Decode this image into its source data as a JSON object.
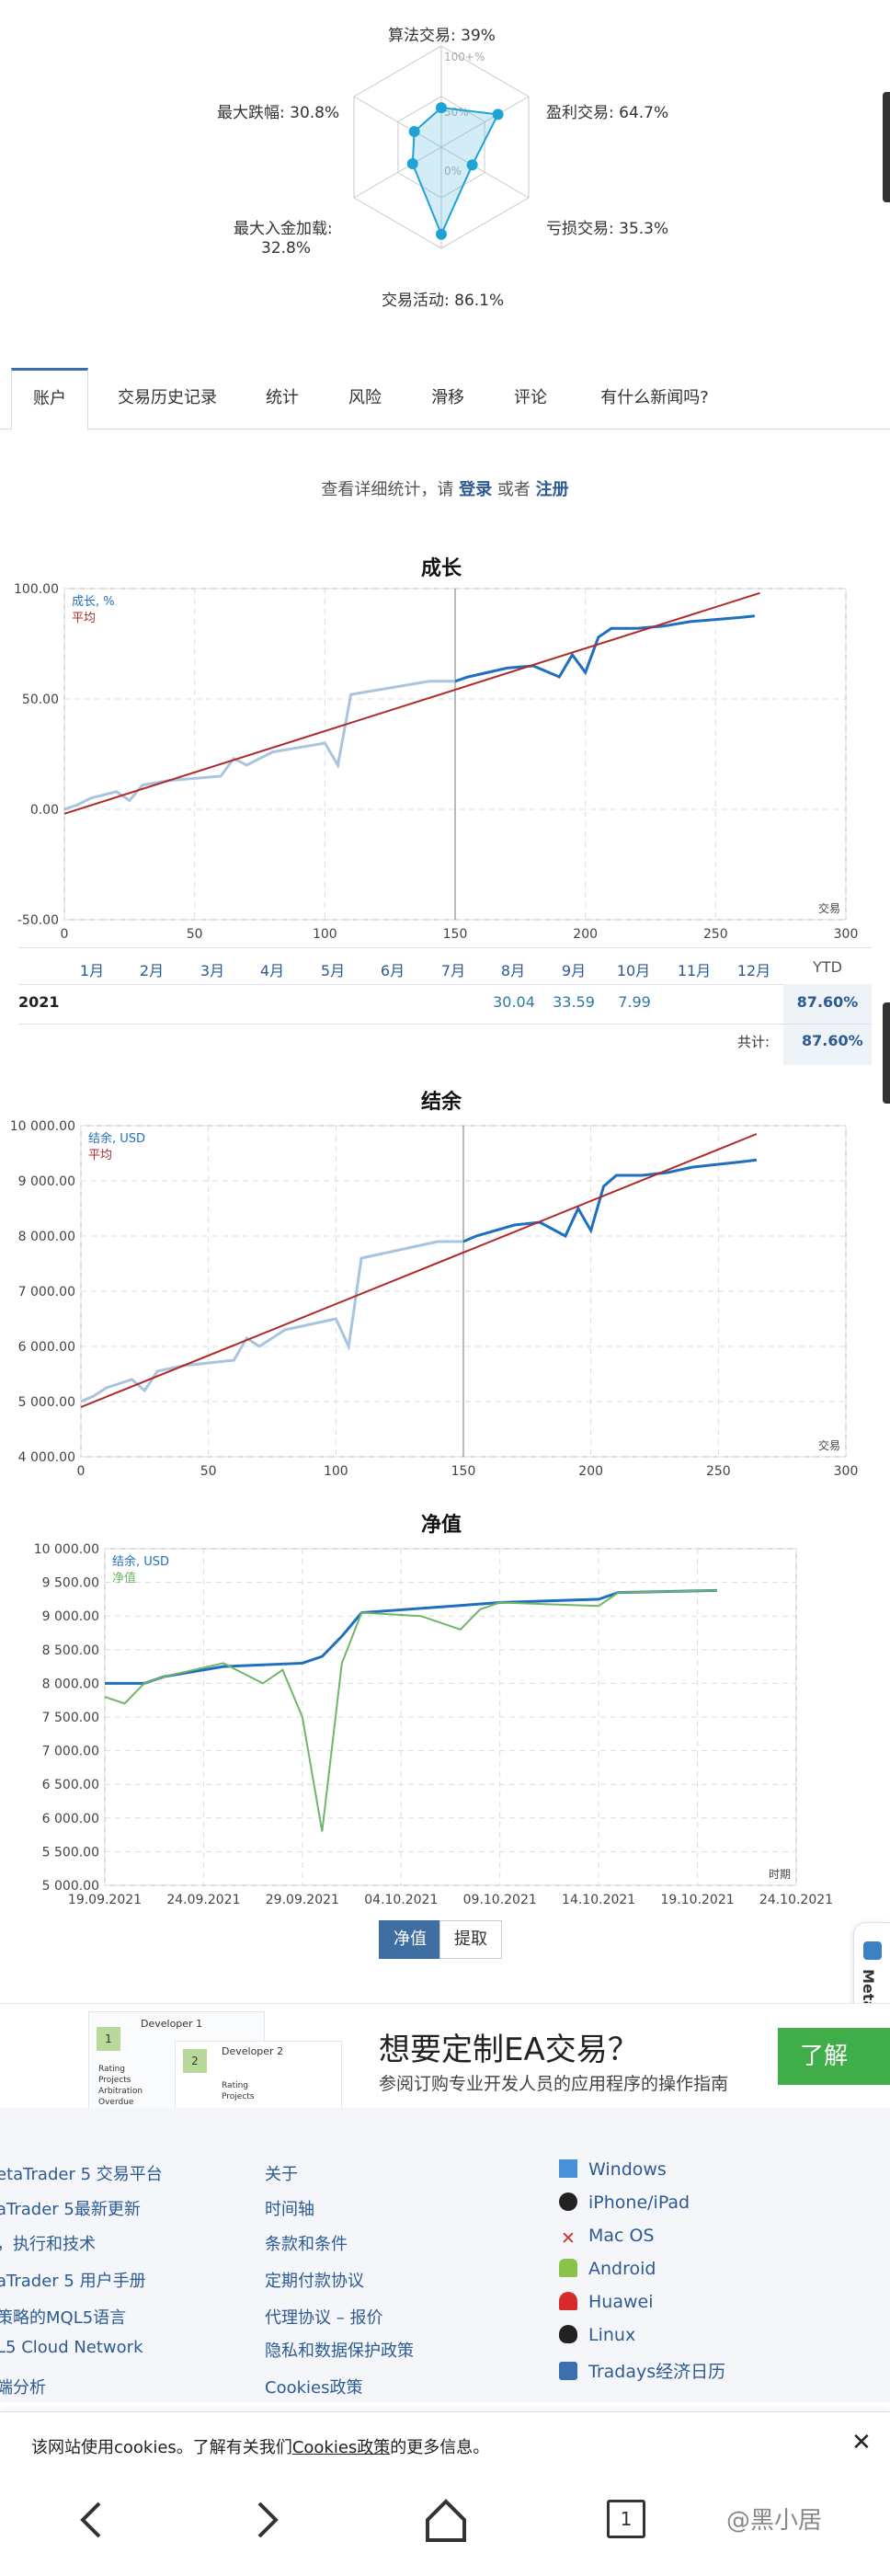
{
  "radar": {
    "labels": {
      "algo": "算法交易: 39%",
      "profit": "盈利交易: 64.7%",
      "loss": "亏损交易: 35.3%",
      "activity": "交易活动: 86.1%",
      "deposit_a": "最大入金加载:",
      "deposit_b": "32.8%",
      "drawdown": "最大跌幅: 30.8%"
    },
    "rings": [
      "100+%",
      "50%",
      "0%"
    ],
    "values": {
      "algo": 0.39,
      "profit": 0.647,
      "loss": 0.353,
      "activity": 0.861,
      "deposit": 0.328,
      "drawdown": 0.308
    }
  },
  "tabs": [
    "账户",
    "交易历史记录",
    "统计",
    "风险",
    "滑移",
    "评论",
    "有什么新闻吗?"
  ],
  "login_prompt": {
    "before": "查看详细统计，请",
    "login": "登录",
    "or": "或者",
    "register": "注册"
  },
  "growth": {
    "title": "成长",
    "legend": [
      "成长, %",
      "平均"
    ],
    "xlabel": "交易",
    "yticks": [
      "100.00",
      "50.00",
      "0.00",
      "-50.00"
    ],
    "xticks": [
      "0",
      "50",
      "100",
      "150",
      "200",
      "250",
      "300"
    ],
    "months": [
      "1月",
      "2月",
      "3月",
      "4月",
      "5月",
      "6月",
      "7月",
      "8月",
      "9月",
      "10月",
      "11月",
      "12月"
    ],
    "ytd_label": "YTD",
    "year": "2021",
    "month_values": {
      "aug": "30.04",
      "sep": "33.59",
      "oct": "7.99"
    },
    "ytd": "87.60%",
    "total_label": "共计:",
    "total": "87.60%"
  },
  "balance": {
    "title": "结余",
    "legend": [
      "结余, USD",
      "平均"
    ],
    "xlabel": "交易",
    "yticks": [
      "10 000.00",
      "9 000.00",
      "8 000.00",
      "7 000.00",
      "6 000.00",
      "5 000.00",
      "4 000.00"
    ],
    "xticks": [
      "0",
      "50",
      "100",
      "150",
      "200",
      "250",
      "300"
    ]
  },
  "equity": {
    "title": "净值",
    "legend": [
      "结余, USD",
      "净值"
    ],
    "xlabel": "时期",
    "yticks": [
      "10 000.00",
      "9 500.00",
      "9 000.00",
      "8 500.00",
      "8 000.00",
      "7 500.00",
      "7 000.00",
      "6 500.00",
      "6 000.00",
      "5 500.00",
      "5 000.00"
    ],
    "xticks": [
      "19.09.2021",
      "24.09.2021",
      "29.09.2021",
      "04.10.2021",
      "09.10.2021",
      "14.10.2021",
      "19.10.2021",
      "24.10.2021"
    ],
    "buttons": [
      "净值",
      "提取"
    ]
  },
  "chart_data": [
    {
      "type": "line",
      "title": "成长",
      "xlabel": "交易",
      "xlim": [
        0,
        300
      ],
      "ylim": [
        -50,
        100
      ],
      "series": [
        {
          "name": "成长, %",
          "x": [
            0,
            5,
            10,
            20,
            25,
            30,
            40,
            60,
            65,
            70,
            80,
            90,
            100,
            105,
            110,
            140,
            150,
            155,
            170,
            180,
            190,
            195,
            200,
            205,
            210,
            220,
            230,
            240,
            250,
            260,
            265
          ],
          "y": [
            0,
            2,
            5,
            8,
            4,
            11,
            13,
            15,
            23,
            20,
            26,
            28,
            30,
            20,
            52,
            58,
            58,
            60,
            64,
            65,
            60,
            70,
            62,
            78,
            82,
            82,
            83,
            85,
            86,
            87,
            87.6
          ]
        },
        {
          "name": "平均",
          "x": [
            0,
            267
          ],
          "y": [
            -2,
            98
          ]
        }
      ]
    },
    {
      "type": "line",
      "title": "结余",
      "xlabel": "交易",
      "xlim": [
        0,
        300
      ],
      "ylim": [
        4000,
        10000
      ],
      "series": [
        {
          "name": "结余, USD",
          "x": [
            0,
            5,
            10,
            20,
            25,
            30,
            40,
            60,
            65,
            70,
            80,
            90,
            100,
            105,
            110,
            140,
            150,
            155,
            170,
            180,
            190,
            195,
            200,
            205,
            210,
            220,
            230,
            240,
            250,
            260,
            265
          ],
          "y": [
            5000,
            5100,
            5250,
            5400,
            5200,
            5550,
            5650,
            5750,
            6150,
            6000,
            6300,
            6400,
            6500,
            6000,
            7600,
            7900,
            7900,
            8000,
            8200,
            8250,
            8000,
            8500,
            8100,
            8900,
            9100,
            9100,
            9150,
            9250,
            9300,
            9350,
            9380
          ]
        },
        {
          "name": "平均",
          "x": [
            0,
            265
          ],
          "y": [
            4900,
            9850
          ]
        }
      ]
    },
    {
      "type": "line",
      "title": "净值",
      "xlabel": "时期",
      "xlim": [
        "19.09.2021",
        "24.10.2021"
      ],
      "ylim": [
        5000,
        10000
      ],
      "series": [
        {
          "name": "结余, USD",
          "x": [
            "19.09.2021",
            "21.09.2021",
            "22.09.2021",
            "24.09.2021",
            "25.09.2021",
            "29.09.2021",
            "30.09.2021",
            "01.10.2021",
            "02.10.2021",
            "09.10.2021",
            "14.10.2021",
            "15.10.2021",
            "20.10.2021"
          ],
          "y": [
            8000,
            8000,
            8100,
            8200,
            8250,
            8300,
            8400,
            8700,
            9050,
            9200,
            9250,
            9350,
            9380
          ]
        },
        {
          "name": "净值",
          "x": [
            "19.09.2021",
            "20.09.2021",
            "21.09.2021",
            "22.09.2021",
            "25.09.2021",
            "27.09.2021",
            "28.09.2021",
            "29.09.2021",
            "30.09.2021",
            "01.10.2021",
            "02.10.2021",
            "05.10.2021",
            "07.10.2021",
            "08.10.2021",
            "09.10.2021",
            "14.10.2021",
            "15.10.2021",
            "20.10.2021"
          ],
          "y": [
            7800,
            7700,
            8000,
            8100,
            8300,
            8000,
            8200,
            7500,
            5800,
            8300,
            9050,
            9000,
            8800,
            9100,
            9200,
            9150,
            9350,
            9380
          ]
        }
      ]
    }
  ],
  "ad": {
    "title": "想要定制EA交易？",
    "subtitle": "参阅订购专业开发人员的应用程序的操作指南",
    "button": "了解",
    "card1_name": "Developer 1",
    "card2_name": "Developer 2",
    "card_lines": [
      "Rating",
      "Projects",
      "Arbitration",
      "Overdue"
    ],
    "side_tab": "MetaTrader VPS"
  },
  "footer": {
    "col1": [
      "etaTrader 5 交易平台",
      "aTrader 5最新更新",
      "，执行和技术",
      "aTrader 5 用户手册",
      "策略的MQL5语言",
      "L5 Cloud Network",
      "端分析"
    ],
    "col2": [
      "关于",
      "时间轴",
      "条款和条件",
      "定期付款协议",
      "代理协议 – 报价",
      "隐私和数据保护政策",
      "Cookies政策"
    ],
    "col3": [
      "Windows",
      "iPhone/iPad",
      "Mac OS",
      "Android",
      "Huawei",
      "Linux",
      "Tradays经济日历"
    ]
  },
  "cookie_bar": {
    "before": "该网站使用cookies。了解有关我们",
    "link": "Cookies政策",
    "after": "的更多信息。"
  },
  "nav": {
    "tab_count": "1",
    "watermark": "@黑小居"
  },
  "colors": {
    "growth_line": "#1f6fc0",
    "growth_faded": "#a9c4de",
    "average": "#b02a2a",
    "equity": "#6fb56a",
    "brand": "#2c5a93"
  }
}
